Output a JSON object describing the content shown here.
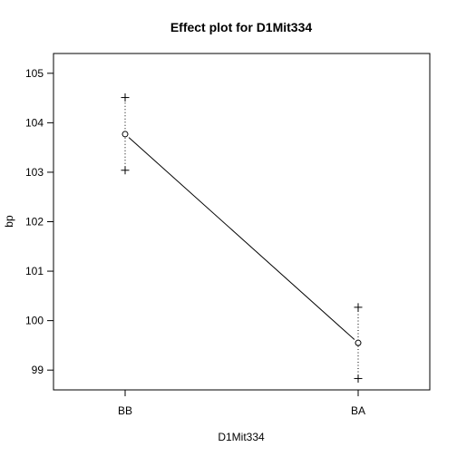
{
  "chart_data": {
    "type": "line",
    "title": "Effect plot for D1Mit334",
    "xlabel": "D1Mit334",
    "ylabel": "bp",
    "categories": [
      "BB",
      "BA"
    ],
    "means": [
      103.77,
      99.55
    ],
    "lower": [
      103.04,
      98.83
    ],
    "upper": [
      104.51,
      100.27
    ],
    "ylim": [
      98.6,
      105.4
    ],
    "yticks": [
      "99",
      "100",
      "101",
      "102",
      "103",
      "104",
      "105"
    ],
    "grid": false,
    "legend": "none",
    "colors": {
      "line": "#000000",
      "axis": "#000000",
      "background": "#ffffff"
    }
  }
}
